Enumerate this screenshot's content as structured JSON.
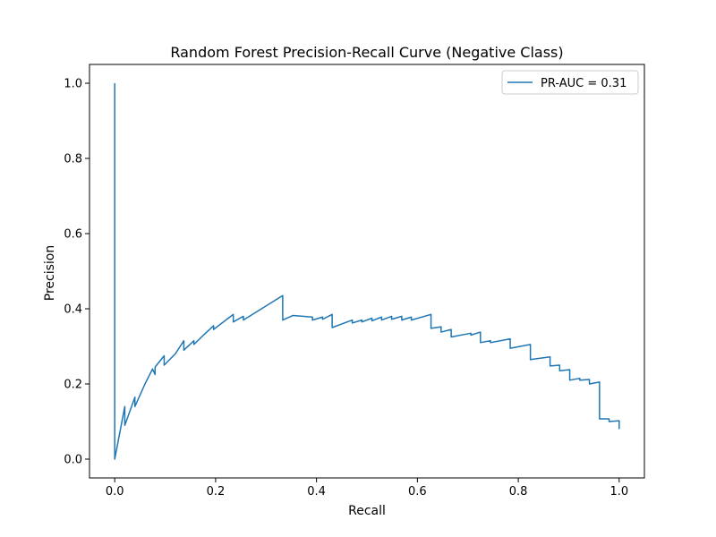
{
  "chart_data": {
    "type": "line",
    "title": "Random Forest Precision-Recall Curve (Negative Class)",
    "xlabel": "Recall",
    "ylabel": "Precision",
    "xlim": [
      -0.05,
      1.05
    ],
    "ylim": [
      -0.05,
      1.05
    ],
    "xticks": [
      0.0,
      0.2,
      0.4,
      0.6,
      0.8,
      1.0
    ],
    "yticks": [
      0.0,
      0.2,
      0.4,
      0.6,
      0.8,
      1.0
    ],
    "xtick_labels": [
      "0.0",
      "0.2",
      "0.4",
      "0.6",
      "0.8",
      "1.0"
    ],
    "ytick_labels": [
      "0.0",
      "0.2",
      "0.4",
      "0.6",
      "0.8",
      "1.0"
    ],
    "grid": false,
    "legend_position": "top-right",
    "series": [
      {
        "name": "PR-AUC = 0.31",
        "color": "#1f77b4",
        "x": [
          0.0,
          0.0,
          0.0,
          0.02,
          0.02,
          0.04,
          0.04,
          0.06,
          0.075,
          0.08,
          0.08,
          0.098,
          0.098,
          0.12,
          0.137,
          0.137,
          0.157,
          0.157,
          0.176,
          0.196,
          0.196,
          0.235,
          0.235,
          0.255,
          0.255,
          0.333,
          0.333,
          0.353,
          0.392,
          0.392,
          0.412,
          0.412,
          0.431,
          0.431,
          0.471,
          0.471,
          0.49,
          0.49,
          0.51,
          0.51,
          0.529,
          0.529,
          0.549,
          0.549,
          0.569,
          0.569,
          0.588,
          0.588,
          0.627,
          0.627,
          0.647,
          0.647,
          0.667,
          0.667,
          0.706,
          0.706,
          0.725,
          0.725,
          0.745,
          0.745,
          0.784,
          0.784,
          0.824,
          0.824,
          0.863,
          0.863,
          0.882,
          0.882,
          0.902,
          0.902,
          0.922,
          0.922,
          0.941,
          0.941,
          0.961,
          0.961,
          0.98,
          0.98,
          1.0,
          1.0
        ],
        "y": [
          1.0,
          0.0,
          0.0,
          0.14,
          0.09,
          0.165,
          0.14,
          0.2,
          0.24,
          0.225,
          0.245,
          0.275,
          0.25,
          0.28,
          0.315,
          0.29,
          0.315,
          0.305,
          0.33,
          0.355,
          0.345,
          0.385,
          0.365,
          0.38,
          0.37,
          0.435,
          0.37,
          0.382,
          0.378,
          0.37,
          0.378,
          0.372,
          0.385,
          0.35,
          0.37,
          0.362,
          0.37,
          0.365,
          0.375,
          0.368,
          0.378,
          0.37,
          0.38,
          0.372,
          0.38,
          0.37,
          0.378,
          0.37,
          0.385,
          0.348,
          0.352,
          0.338,
          0.345,
          0.325,
          0.335,
          0.33,
          0.338,
          0.31,
          0.315,
          0.31,
          0.32,
          0.295,
          0.305,
          0.265,
          0.272,
          0.248,
          0.25,
          0.235,
          0.238,
          0.21,
          0.215,
          0.21,
          0.212,
          0.2,
          0.205,
          0.107,
          0.107,
          0.1,
          0.102,
          0.08
        ]
      }
    ]
  }
}
